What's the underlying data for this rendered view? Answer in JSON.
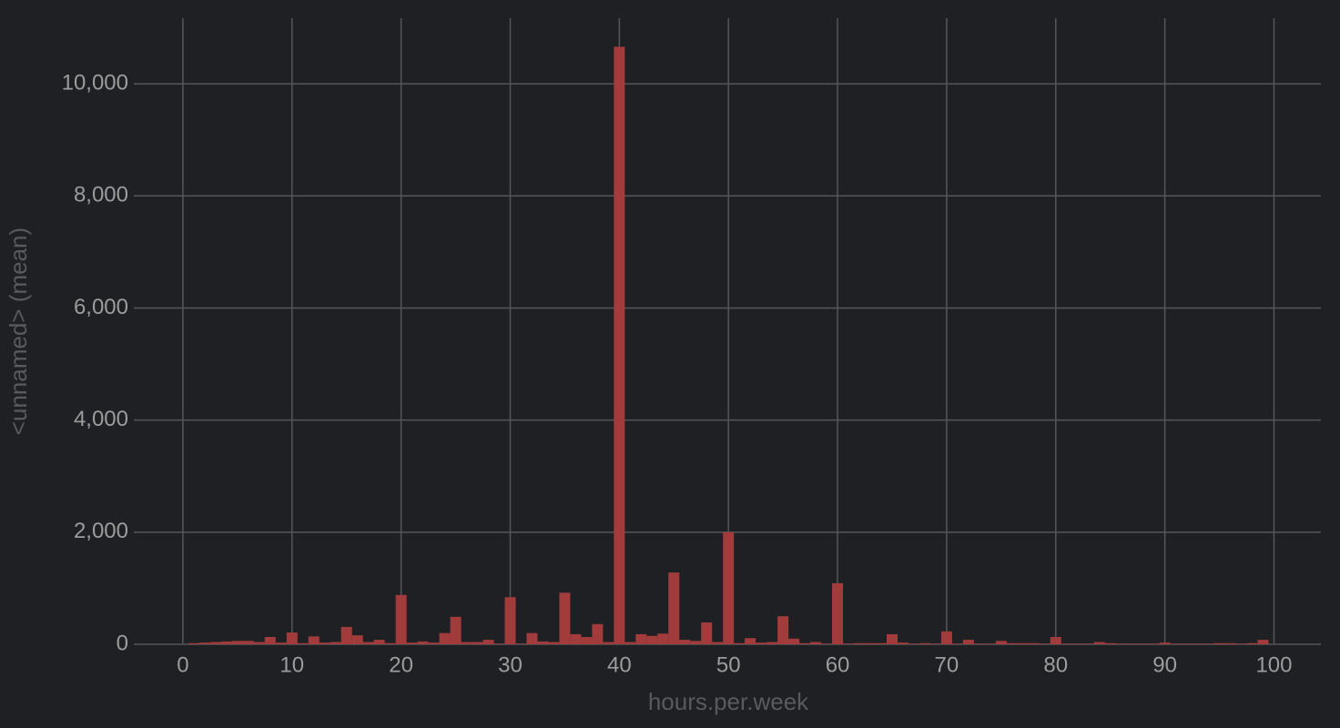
{
  "chart_data": {
    "type": "bar",
    "x_label": "hours.per.week",
    "y_label": "<unnamed> (mean)",
    "color": "#a23c3c",
    "grid": true,
    "x": [
      1,
      2,
      3,
      4,
      5,
      6,
      7,
      8,
      9,
      10,
      11,
      12,
      13,
      14,
      15,
      16,
      17,
      18,
      19,
      20,
      21,
      22,
      23,
      24,
      25,
      26,
      27,
      28,
      29,
      30,
      31,
      32,
      33,
      34,
      35,
      36,
      37,
      38,
      39,
      40,
      41,
      42,
      43,
      44,
      45,
      46,
      47,
      48,
      49,
      50,
      51,
      52,
      53,
      54,
      55,
      56,
      57,
      58,
      59,
      60,
      61,
      62,
      63,
      64,
      65,
      66,
      67,
      68,
      69,
      70,
      71,
      72,
      73,
      74,
      75,
      76,
      77,
      78,
      79,
      80,
      81,
      82,
      83,
      84,
      85,
      86,
      87,
      88,
      89,
      90,
      91,
      92,
      93,
      94,
      95,
      96,
      97,
      98,
      99
    ],
    "values": [
      20,
      30,
      40,
      50,
      60,
      60,
      40,
      130,
      30,
      210,
      20,
      140,
      30,
      40,
      310,
      160,
      40,
      80,
      20,
      880,
      30,
      50,
      30,
      200,
      490,
      40,
      40,
      80,
      10,
      840,
      10,
      200,
      50,
      40,
      920,
      180,
      130,
      360,
      40,
      10660,
      40,
      180,
      150,
      190,
      1280,
      80,
      60,
      390,
      40,
      2000,
      20,
      110,
      30,
      40,
      500,
      100,
      20,
      40,
      10,
      1090,
      10,
      20,
      20,
      20,
      180,
      30,
      10,
      20,
      10,
      230,
      10,
      80,
      10,
      10,
      60,
      20,
      20,
      20,
      10,
      130,
      10,
      10,
      10,
      40,
      20,
      10,
      10,
      10,
      10,
      30,
      10,
      10,
      10,
      10,
      20,
      20,
      10,
      20,
      80
    ],
    "xlim": [
      -4.5,
      104.3
    ],
    "xticks": [
      0,
      10,
      20,
      30,
      40,
      50,
      60,
      70,
      80,
      90,
      100
    ],
    "ylim": [
      0,
      11170
    ],
    "yticks": [
      0,
      {
        "value": 2000,
        "label": "2,000"
      },
      {
        "value": 4000,
        "label": "4,000"
      },
      {
        "value": 6000,
        "label": "6,000"
      },
      {
        "value": 8000,
        "label": "8,000"
      },
      {
        "value": 10000,
        "label": "10,000"
      }
    ]
  }
}
